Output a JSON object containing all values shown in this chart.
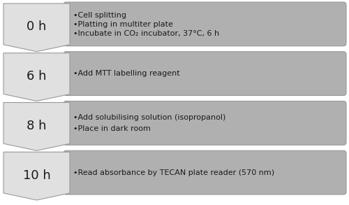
{
  "steps": [
    {
      "time": "0 h",
      "bullets": [
        "•Cell splitting",
        "•Platting in multiter plate",
        "•Incubate in CO₂ incubator, 37°C, 6 h"
      ]
    },
    {
      "time": "6 h",
      "bullets": [
        "•Add MTT labelling reagent"
      ]
    },
    {
      "time": "8 h",
      "bullets": [
        "•Add solubilising solution (isopropanol)",
        "•Place in dark room"
      ]
    },
    {
      "time": "10 h",
      "bullets": [
        "•Read absorbance by TECAN plate reader (570 nm)"
      ]
    }
  ],
  "box_fill": "#b0b0b0",
  "chevron_fill": "#e0e0e0",
  "chevron_edge": "#999999",
  "box_edge": "#999999",
  "text_color": "#1a1a1a",
  "bg_color": "#ffffff",
  "time_fontsize": 13,
  "bullet_fontsize": 8.0,
  "fig_width": 5.0,
  "fig_height": 2.93
}
